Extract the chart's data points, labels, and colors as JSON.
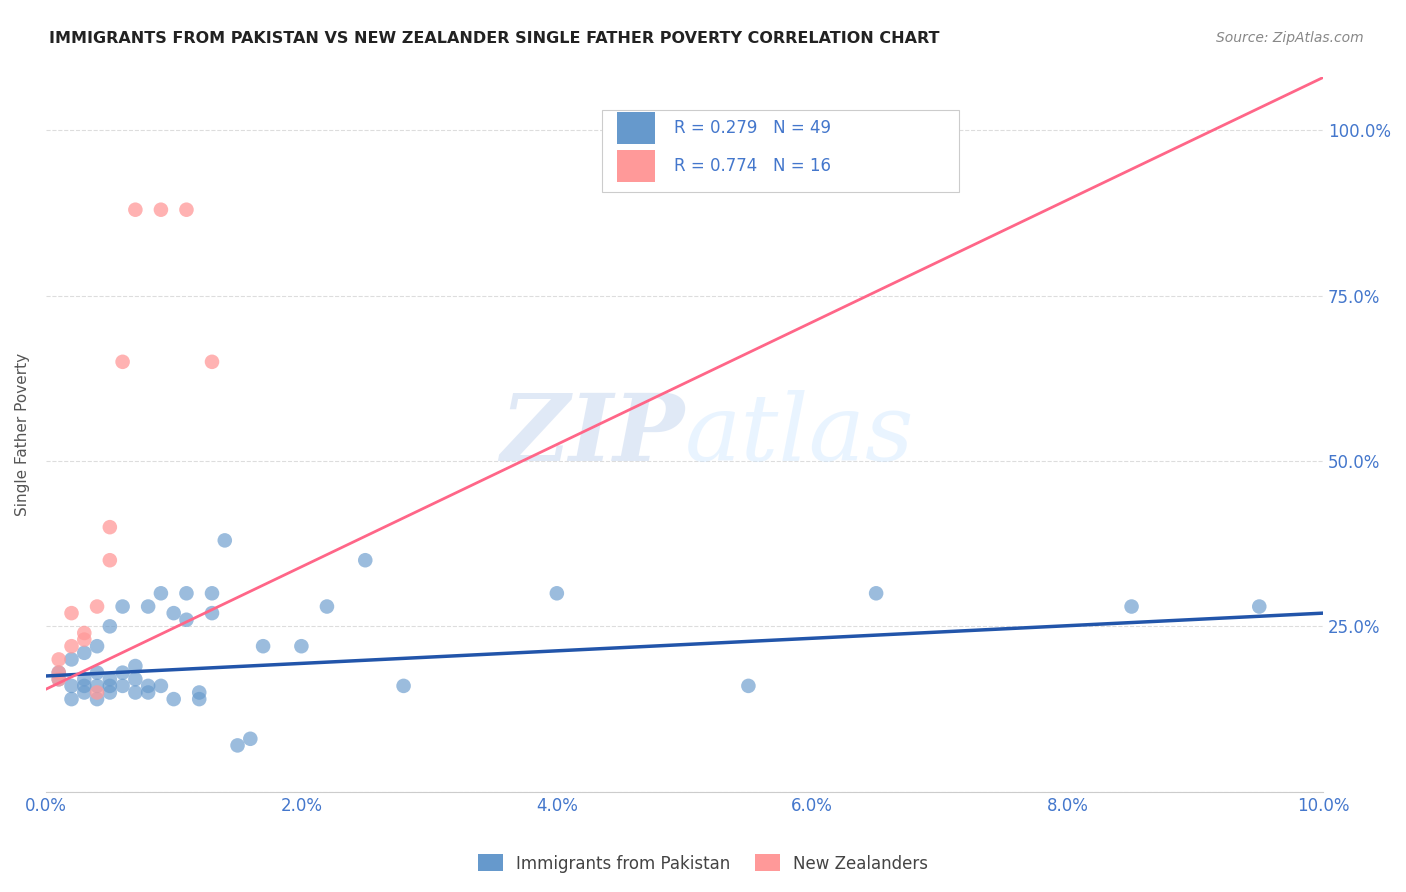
{
  "title": "IMMIGRANTS FROM PAKISTAN VS NEW ZEALANDER SINGLE FATHER POVERTY CORRELATION CHART",
  "source": "Source: ZipAtlas.com",
  "ylabel": "Single Father Poverty",
  "yticks": [
    0.0,
    0.25,
    0.5,
    0.75,
    1.0
  ],
  "ytick_labels": [
    "",
    "25.0%",
    "50.0%",
    "75.0%",
    "100.0%"
  ],
  "xticks": [
    0.0,
    0.02,
    0.04,
    0.06,
    0.08,
    0.1
  ],
  "legend_blue_r": "R = 0.279",
  "legend_blue_n": "N = 49",
  "legend_pink_r": "R = 0.774",
  "legend_pink_n": "N = 16",
  "legend_blue_label": "Immigrants from Pakistan",
  "legend_pink_label": "New Zealanders",
  "blue_color": "#6699CC",
  "pink_color": "#FF9999",
  "blue_line_color": "#2255AA",
  "pink_line_color": "#FF6688",
  "text_color": "#4477CC",
  "title_color": "#222222",
  "blue_scatter_x": [
    0.001,
    0.001,
    0.002,
    0.002,
    0.002,
    0.003,
    0.003,
    0.003,
    0.003,
    0.004,
    0.004,
    0.004,
    0.004,
    0.005,
    0.005,
    0.005,
    0.005,
    0.006,
    0.006,
    0.006,
    0.007,
    0.007,
    0.007,
    0.008,
    0.008,
    0.008,
    0.009,
    0.009,
    0.01,
    0.01,
    0.011,
    0.011,
    0.012,
    0.012,
    0.013,
    0.013,
    0.014,
    0.015,
    0.016,
    0.017,
    0.02,
    0.022,
    0.025,
    0.028,
    0.04,
    0.055,
    0.065,
    0.085,
    0.095
  ],
  "blue_scatter_y": [
    0.17,
    0.18,
    0.14,
    0.16,
    0.2,
    0.15,
    0.16,
    0.17,
    0.21,
    0.18,
    0.14,
    0.16,
    0.22,
    0.15,
    0.16,
    0.17,
    0.25,
    0.16,
    0.18,
    0.28,
    0.15,
    0.17,
    0.19,
    0.15,
    0.16,
    0.28,
    0.16,
    0.3,
    0.14,
    0.27,
    0.26,
    0.3,
    0.14,
    0.15,
    0.27,
    0.3,
    0.38,
    0.07,
    0.08,
    0.22,
    0.22,
    0.28,
    0.35,
    0.16,
    0.3,
    0.16,
    0.3,
    0.28,
    0.28
  ],
  "pink_scatter_x": [
    0.001,
    0.001,
    0.001,
    0.002,
    0.002,
    0.003,
    0.003,
    0.004,
    0.004,
    0.005,
    0.005,
    0.006,
    0.007,
    0.009,
    0.011,
    0.013
  ],
  "pink_scatter_y": [
    0.17,
    0.18,
    0.2,
    0.22,
    0.27,
    0.23,
    0.24,
    0.28,
    0.15,
    0.4,
    0.35,
    0.65,
    0.88,
    0.88,
    0.88,
    0.65
  ],
  "blue_line_x": [
    0.0,
    0.1
  ],
  "blue_line_y": [
    0.175,
    0.27
  ],
  "pink_line_x": [
    0.0,
    0.1
  ],
  "pink_line_y": [
    0.155,
    1.08
  ],
  "watermark_zip": "ZIP",
  "watermark_atlas": "atlas",
  "xmin": 0.0,
  "xmax": 0.1,
  "ymin": 0.0,
  "ymax": 1.08
}
